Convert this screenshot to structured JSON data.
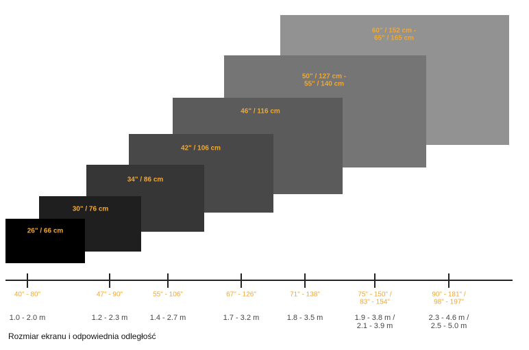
{
  "screens": [
    {
      "label": [
        "26\" / 66 cm"
      ]
    },
    {
      "label": [
        "30\" / 76 cm"
      ]
    },
    {
      "label": [
        "34\" / 86 cm"
      ]
    },
    {
      "label": [
        "42\" / 106 cm"
      ]
    },
    {
      "label": [
        "46\" / 116 cm"
      ]
    },
    {
      "label": [
        "50\" / 127 cm -",
        "55\" / 140 cm"
      ]
    },
    {
      "label": [
        "60\" / 152 cm -",
        "65\" / 165 cm"
      ]
    }
  ],
  "ticks": [
    {
      "inches": [
        "40\" - 80\""
      ],
      "meters": [
        "1.0 - 2.0 m"
      ]
    },
    {
      "inches": [
        "47\" - 90\""
      ],
      "meters": [
        "1.2 - 2.3 m"
      ]
    },
    {
      "inches": [
        "55\" - 106\""
      ],
      "meters": [
        "1.4 - 2.7 m"
      ]
    },
    {
      "inches": [
        "67\" - 126\""
      ],
      "meters": [
        "1.7 - 3.2 m"
      ]
    },
    {
      "inches": [
        "71\" - 138\""
      ],
      "meters": [
        "1.8 - 3.5 m"
      ]
    },
    {
      "inches": [
        "75\" - 150\" /",
        "83\" - 154\""
      ],
      "meters": [
        "1.9 - 3.8 m /",
        "2.1 - 3.9 m"
      ]
    },
    {
      "inches": [
        "90\" - 181\" /",
        "98\" - 197\""
      ],
      "meters": [
        "2.3 - 4.6 m /",
        "2.5 - 5.0 m"
      ]
    }
  ],
  "caption": "Rozmiar ekranu i odpowiednia odległość"
}
